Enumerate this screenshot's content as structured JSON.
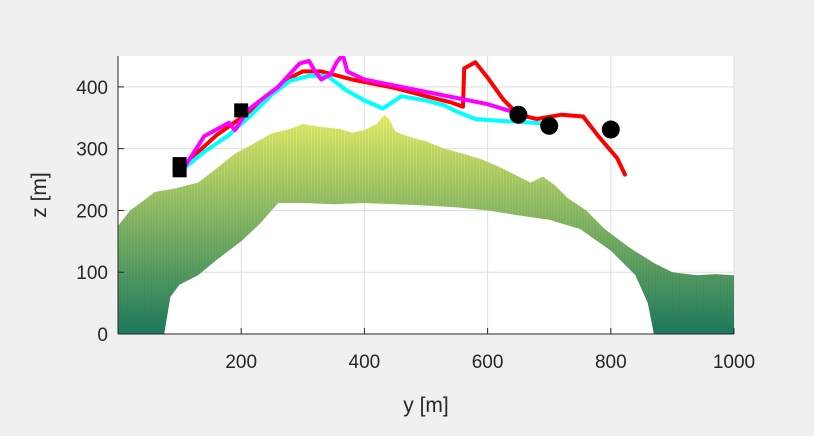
{
  "chart_data": {
    "type": "line",
    "title": "",
    "xlabel": "y [m]",
    "ylabel": "z [m]",
    "xlim": [
      0,
      1000
    ],
    "ylim": [
      0,
      450
    ],
    "xticks": [
      200,
      400,
      600,
      800,
      1000
    ],
    "yticks": [
      0,
      100,
      200,
      300,
      400
    ],
    "xtick_labels": [
      "200",
      "400",
      "600",
      "800",
      "1000"
    ],
    "ytick_labels": [
      "0",
      "100",
      "200",
      "300",
      "400"
    ],
    "grid": true,
    "colors": {
      "background": "#f0f0f0",
      "axes": "#ffffff",
      "grid": "#dfdfdf",
      "axis_line": "#262626",
      "terrain_top": "#e8f06a",
      "terrain_bottom": "#1d7a5e"
    },
    "terrain": {
      "name": "terrain surface",
      "top": [
        {
          "x": 0,
          "y": 175
        },
        {
          "x": 20,
          "y": 200
        },
        {
          "x": 40,
          "y": 215
        },
        {
          "x": 60,
          "y": 230
        },
        {
          "x": 90,
          "y": 235
        },
        {
          "x": 130,
          "y": 245
        },
        {
          "x": 160,
          "y": 268
        },
        {
          "x": 190,
          "y": 292
        },
        {
          "x": 220,
          "y": 308
        },
        {
          "x": 250,
          "y": 325
        },
        {
          "x": 280,
          "y": 332
        },
        {
          "x": 300,
          "y": 340
        },
        {
          "x": 330,
          "y": 335
        },
        {
          "x": 360,
          "y": 332
        },
        {
          "x": 380,
          "y": 326
        },
        {
          "x": 400,
          "y": 330
        },
        {
          "x": 420,
          "y": 340
        },
        {
          "x": 432,
          "y": 355
        },
        {
          "x": 440,
          "y": 348
        },
        {
          "x": 450,
          "y": 328
        },
        {
          "x": 470,
          "y": 320
        },
        {
          "x": 500,
          "y": 312
        },
        {
          "x": 530,
          "y": 300
        },
        {
          "x": 560,
          "y": 292
        },
        {
          "x": 590,
          "y": 283
        },
        {
          "x": 620,
          "y": 270
        },
        {
          "x": 650,
          "y": 255
        },
        {
          "x": 670,
          "y": 245
        },
        {
          "x": 690,
          "y": 255
        },
        {
          "x": 710,
          "y": 240
        },
        {
          "x": 730,
          "y": 220
        },
        {
          "x": 760,
          "y": 200
        },
        {
          "x": 790,
          "y": 170
        },
        {
          "x": 830,
          "y": 140
        },
        {
          "x": 870,
          "y": 115
        },
        {
          "x": 900,
          "y": 100
        },
        {
          "x": 940,
          "y": 95
        },
        {
          "x": 970,
          "y": 97
        },
        {
          "x": 1000,
          "y": 95
        }
      ],
      "bottom": [
        {
          "x": 1000,
          "y": 0
        },
        {
          "x": 870,
          "y": 0
        },
        {
          "x": 860,
          "y": 50
        },
        {
          "x": 840,
          "y": 95
        },
        {
          "x": 800,
          "y": 135
        },
        {
          "x": 750,
          "y": 170
        },
        {
          "x": 700,
          "y": 185
        },
        {
          "x": 650,
          "y": 192
        },
        {
          "x": 600,
          "y": 200
        },
        {
          "x": 550,
          "y": 205
        },
        {
          "x": 500,
          "y": 208
        },
        {
          "x": 450,
          "y": 210
        },
        {
          "x": 400,
          "y": 212
        },
        {
          "x": 350,
          "y": 210
        },
        {
          "x": 300,
          "y": 212
        },
        {
          "x": 260,
          "y": 212
        },
        {
          "x": 230,
          "y": 178
        },
        {
          "x": 200,
          "y": 150
        },
        {
          "x": 160,
          "y": 120
        },
        {
          "x": 130,
          "y": 95
        },
        {
          "x": 100,
          "y": 80
        },
        {
          "x": 85,
          "y": 60
        },
        {
          "x": 75,
          "y": 0
        },
        {
          "x": 0,
          "y": 0
        }
      ]
    },
    "series": [
      {
        "name": "red trajectory",
        "color": "#ff0000",
        "points": [
          {
            "x": 100,
            "y": 265
          },
          {
            "x": 125,
            "y": 290
          },
          {
            "x": 160,
            "y": 322
          },
          {
            "x": 200,
            "y": 350
          },
          {
            "x": 240,
            "y": 380
          },
          {
            "x": 270,
            "y": 410
          },
          {
            "x": 300,
            "y": 425
          },
          {
            "x": 330,
            "y": 425
          },
          {
            "x": 380,
            "y": 412
          },
          {
            "x": 450,
            "y": 398
          },
          {
            "x": 500,
            "y": 385
          },
          {
            "x": 540,
            "y": 375
          },
          {
            "x": 560,
            "y": 368
          },
          {
            "x": 562,
            "y": 430
          },
          {
            "x": 580,
            "y": 440
          },
          {
            "x": 600,
            "y": 415
          },
          {
            "x": 625,
            "y": 380
          },
          {
            "x": 650,
            "y": 355
          },
          {
            "x": 680,
            "y": 348
          },
          {
            "x": 720,
            "y": 355
          },
          {
            "x": 755,
            "y": 352
          },
          {
            "x": 780,
            "y": 320
          },
          {
            "x": 810,
            "y": 285
          },
          {
            "x": 823,
            "y": 258
          }
        ]
      },
      {
        "name": "cyan trajectory",
        "color": "#00ffff",
        "points": [
          {
            "x": 100,
            "y": 262
          },
          {
            "x": 140,
            "y": 295
          },
          {
            "x": 180,
            "y": 322
          },
          {
            "x": 220,
            "y": 358
          },
          {
            "x": 250,
            "y": 388
          },
          {
            "x": 280,
            "y": 410
          },
          {
            "x": 310,
            "y": 418
          },
          {
            "x": 340,
            "y": 418
          },
          {
            "x": 370,
            "y": 395
          },
          {
            "x": 400,
            "y": 378
          },
          {
            "x": 430,
            "y": 365
          },
          {
            "x": 460,
            "y": 385
          },
          {
            "x": 500,
            "y": 378
          },
          {
            "x": 530,
            "y": 370
          },
          {
            "x": 550,
            "y": 360
          },
          {
            "x": 580,
            "y": 348
          },
          {
            "x": 620,
            "y": 345
          },
          {
            "x": 660,
            "y": 343
          },
          {
            "x": 700,
            "y": 340
          }
        ]
      },
      {
        "name": "magenta trajectory",
        "color": "#ff00ff",
        "points": [
          {
            "x": 100,
            "y": 258
          },
          {
            "x": 140,
            "y": 320
          },
          {
            "x": 180,
            "y": 342
          },
          {
            "x": 190,
            "y": 330
          },
          {
            "x": 210,
            "y": 362
          },
          {
            "x": 240,
            "y": 385
          },
          {
            "x": 260,
            "y": 400
          },
          {
            "x": 280,
            "y": 422
          },
          {
            "x": 295,
            "y": 438
          },
          {
            "x": 310,
            "y": 442
          },
          {
            "x": 320,
            "y": 425
          },
          {
            "x": 330,
            "y": 412
          },
          {
            "x": 345,
            "y": 420
          },
          {
            "x": 355,
            "y": 440
          },
          {
            "x": 365,
            "y": 452
          },
          {
            "x": 372,
            "y": 425
          },
          {
            "x": 400,
            "y": 412
          },
          {
            "x": 450,
            "y": 402
          },
          {
            "x": 500,
            "y": 392
          },
          {
            "x": 550,
            "y": 382
          },
          {
            "x": 600,
            "y": 372
          },
          {
            "x": 650,
            "y": 357
          }
        ]
      }
    ],
    "markers": {
      "start_squares": [
        {
          "x": 100,
          "y": 265
        },
        {
          "x": 100,
          "y": 275
        },
        {
          "x": 200,
          "y": 362
        }
      ],
      "end_circles": [
        {
          "x": 650,
          "y": 355
        },
        {
          "x": 700,
          "y": 337
        },
        {
          "x": 800,
          "y": 331
        }
      ]
    }
  }
}
